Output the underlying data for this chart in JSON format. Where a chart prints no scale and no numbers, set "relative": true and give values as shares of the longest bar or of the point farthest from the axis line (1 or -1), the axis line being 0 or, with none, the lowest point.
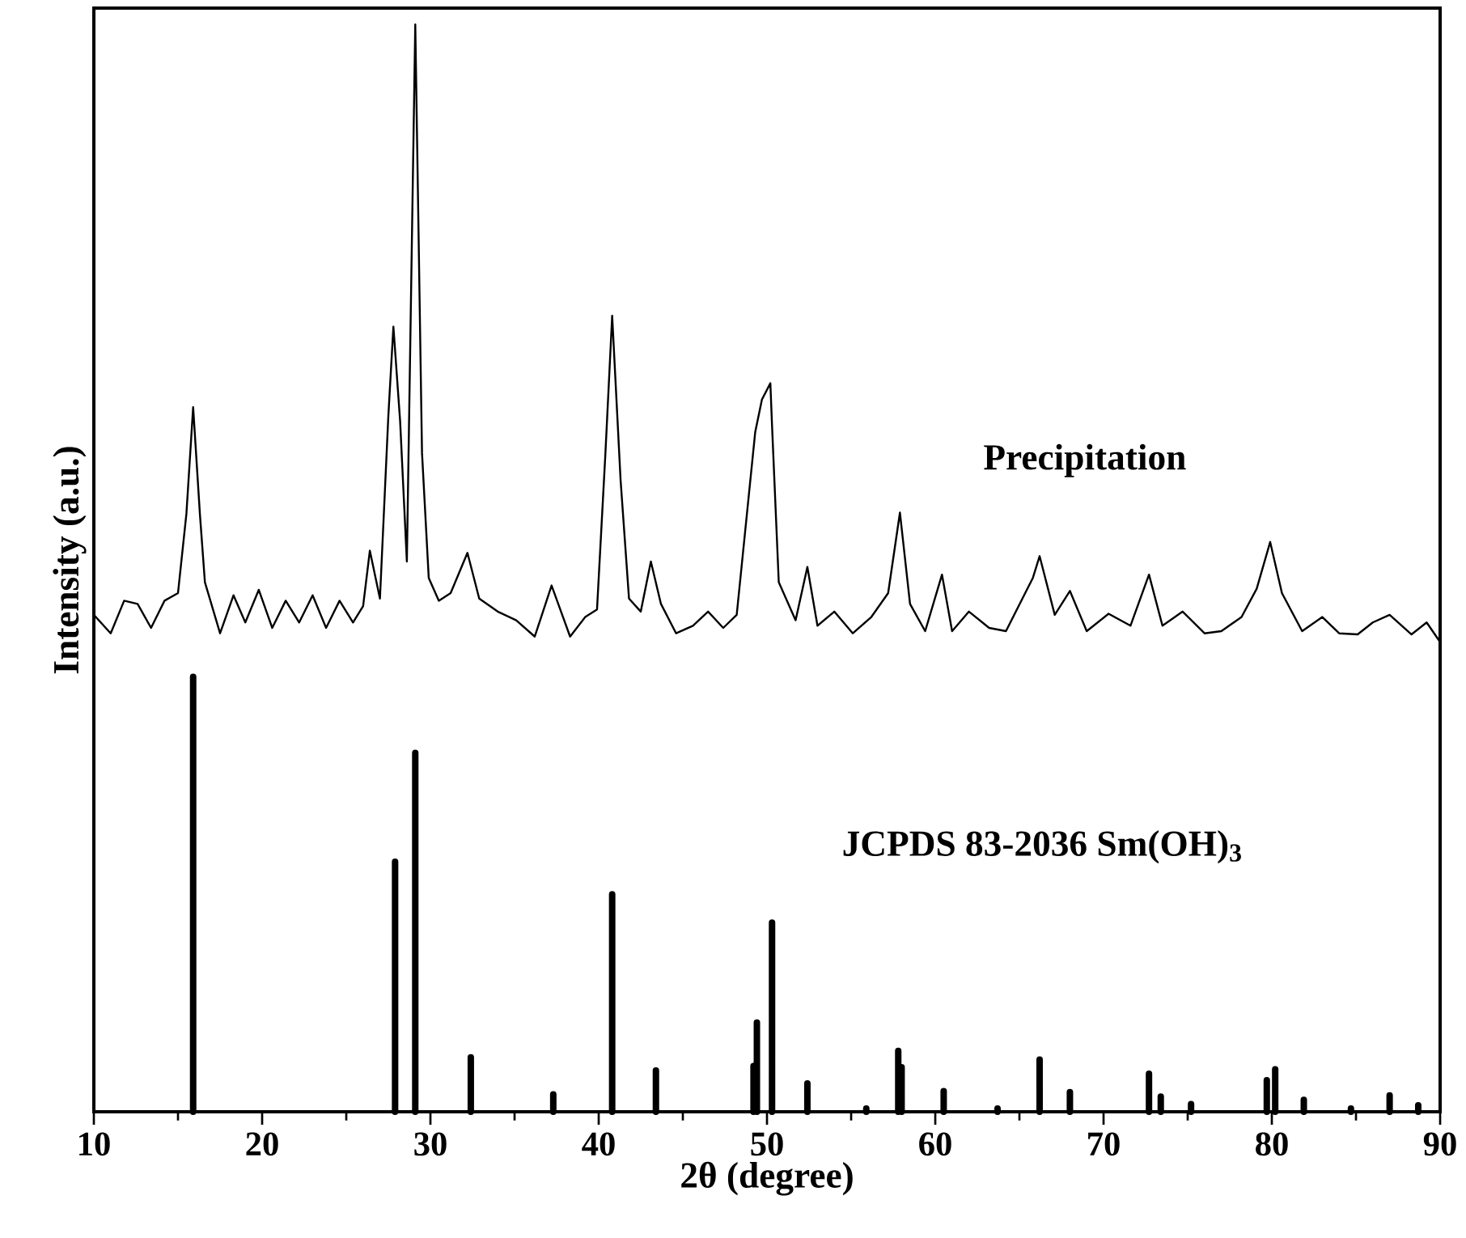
{
  "chart_data": {
    "type": "line",
    "xlabel": "2θ (degree)",
    "ylabel": "Intensity (a.u.)",
    "relative": true,
    "xlim": [
      10,
      90
    ],
    "xticks": [
      10,
      20,
      30,
      40,
      50,
      60,
      70,
      80,
      90
    ],
    "grid": false,
    "marker": "none",
    "line_style": "solid",
    "series": [
      {
        "name": "Precipitation",
        "color": "#000000",
        "x": [
          10,
          11.0,
          11.8,
          12.6,
          13.4,
          14.2,
          15.0,
          15.5,
          15.9,
          16.3,
          16.6,
          17.5,
          18.3,
          19.0,
          19.8,
          20.6,
          21.4,
          22.2,
          23.0,
          23.8,
          24.6,
          25.4,
          26.0,
          26.4,
          27.0,
          27.5,
          27.8,
          28.2,
          28.6,
          29.1,
          29.5,
          29.9,
          30.5,
          31.2,
          32.2,
          32.9,
          34.0,
          35.1,
          36.2,
          37.2,
          38.3,
          39.2,
          39.9,
          40.4,
          40.8,
          41.3,
          41.8,
          42.5,
          43.1,
          43.7,
          44.6,
          45.6,
          46.5,
          47.4,
          48.2,
          49.3,
          49.7,
          50.2,
          50.3,
          50.7,
          51.7,
          52.4,
          53.0,
          54.0,
          55.1,
          56.2,
          57.2,
          57.9,
          58.5,
          59.4,
          60.4,
          61.0,
          62.0,
          63.2,
          64.2,
          65.8,
          66.2,
          67.1,
          68.0,
          69.0,
          70.3,
          71.6,
          72.7,
          73.5,
          74.7,
          76.0,
          77.0,
          78.2,
          79.1,
          79.9,
          80.6,
          81.8,
          83.0,
          84.0,
          85.1,
          86.0,
          87.0,
          88.3,
          89.2,
          90
        ],
        "values": [
          0.457,
          0.44,
          0.47,
          0.467,
          0.445,
          0.47,
          0.477,
          0.55,
          0.648,
          0.55,
          0.487,
          0.44,
          0.475,
          0.45,
          0.48,
          0.445,
          0.47,
          0.45,
          0.475,
          0.445,
          0.47,
          0.45,
          0.465,
          0.516,
          0.472,
          0.64,
          0.722,
          0.635,
          0.506,
          1.0,
          0.606,
          0.491,
          0.47,
          0.477,
          0.514,
          0.472,
          0.46,
          0.452,
          0.437,
          0.484,
          0.437,
          0.455,
          0.462,
          0.606,
          0.732,
          0.581,
          0.472,
          0.46,
          0.506,
          0.467,
          0.44,
          0.447,
          0.46,
          0.445,
          0.457,
          0.625,
          0.655,
          0.67,
          0.631,
          0.487,
          0.452,
          0.501,
          0.447,
          0.46,
          0.44,
          0.455,
          0.477,
          0.551,
          0.467,
          0.442,
          0.494,
          0.442,
          0.46,
          0.445,
          0.442,
          0.491,
          0.511,
          0.457,
          0.479,
          0.442,
          0.458,
          0.447,
          0.494,
          0.447,
          0.46,
          0.44,
          0.442,
          0.455,
          0.481,
          0.524,
          0.477,
          0.442,
          0.455,
          0.44,
          0.439,
          0.45,
          0.457,
          0.439,
          0.45,
          0.432
        ]
      },
      {
        "name": "JCPDS 83-2036  Sm(OH)$_{3}$",
        "type": "bar",
        "color": "#000000",
        "x": [
          15.9,
          27.9,
          29.1,
          32.4,
          37.3,
          40.8,
          43.4,
          49.2,
          49.4,
          50.3,
          52.4,
          55.9,
          57.8,
          58.0,
          60.5,
          63.7,
          66.2,
          68.0,
          72.7,
          73.4,
          75.2,
          79.7,
          80.2,
          81.9,
          84.7,
          87.0,
          88.7
        ],
        "values": [
          0.4,
          0.23,
          0.33,
          0.05,
          0.016,
          0.2,
          0.038,
          0.042,
          0.082,
          0.174,
          0.026,
          0.003,
          0.056,
          0.041,
          0.019,
          0.003,
          0.048,
          0.018,
          0.035,
          0.014,
          0.007,
          0.029,
          0.039,
          0.011,
          0.003,
          0.015,
          0.006
        ]
      }
    ]
  }
}
